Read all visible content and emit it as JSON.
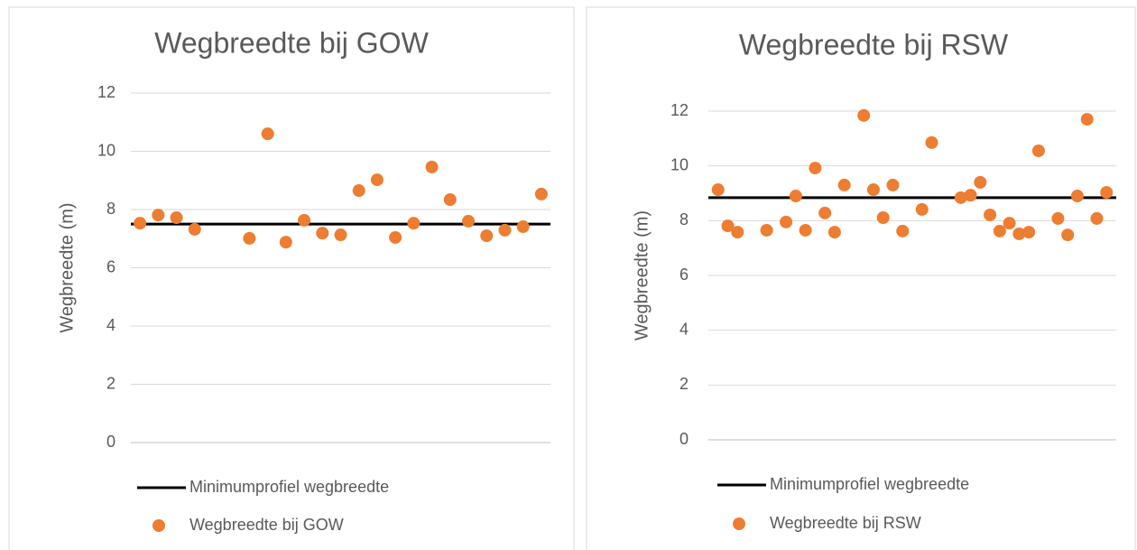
{
  "chart_data": [
    {
      "type": "scatter",
      "title": "Wegbreedte bij GOW",
      "ylabel": "Wegbreedte (m)",
      "ylim": [
        0,
        12
      ],
      "yticks": [
        0,
        2,
        4,
        6,
        8,
        10,
        12
      ],
      "xlim": [
        0.5,
        23.5
      ],
      "grid": true,
      "series": [
        {
          "name": "Minimumprofiel wegbreedte",
          "type": "line",
          "color": "#000000",
          "value": 7.5
        },
        {
          "name": "Wegbreedte bij GOW",
          "type": "scatter",
          "color": "#ED7D31",
          "x": [
            1,
            2,
            3,
            4,
            7,
            8,
            9,
            10,
            11,
            12,
            13,
            14,
            15,
            16,
            17,
            18,
            19,
            20,
            21,
            22,
            23
          ],
          "values": [
            7.53,
            7.81,
            7.72,
            7.32,
            7.01,
            10.6,
            6.88,
            7.63,
            7.19,
            7.13,
            8.65,
            9.02,
            7.04,
            7.53,
            9.46,
            8.34,
            7.6,
            7.1,
            7.29,
            7.41,
            8.53
          ]
        }
      ]
    },
    {
      "type": "scatter",
      "title": "Wegbreedte bij RSW",
      "ylabel": "Wegbreedte (m)",
      "ylim": [
        0,
        12
      ],
      "yticks": [
        0,
        2,
        4,
        6,
        8,
        10,
        12
      ],
      "xlim": [
        0,
        42
      ],
      "grid": true,
      "series": [
        {
          "name": "Minimumprofiel wegbreedte",
          "type": "line",
          "color": "#000000",
          "value": 8.84
        },
        {
          "name": "Wegbreedte bij RSW",
          "type": "scatter",
          "color": "#ED7D31",
          "x": [
            1,
            2,
            3,
            6,
            8,
            9,
            10,
            11,
            12,
            13,
            14,
            16,
            17,
            18,
            19,
            20,
            22,
            23,
            26,
            27,
            28,
            29,
            30,
            31,
            32,
            33,
            34,
            36,
            37,
            38,
            39,
            40,
            41
          ],
          "values": [
            9.13,
            7.81,
            7.58,
            7.65,
            7.95,
            8.9,
            7.65,
            9.92,
            8.28,
            7.58,
            9.3,
            11.84,
            9.13,
            8.11,
            9.3,
            7.62,
            8.41,
            10.85,
            8.84,
            8.93,
            9.4,
            8.21,
            7.62,
            7.91,
            7.52,
            7.58,
            10.55,
            8.08,
            7.48,
            8.9,
            11.7,
            8.08,
            9.03
          ]
        }
      ]
    }
  ]
}
